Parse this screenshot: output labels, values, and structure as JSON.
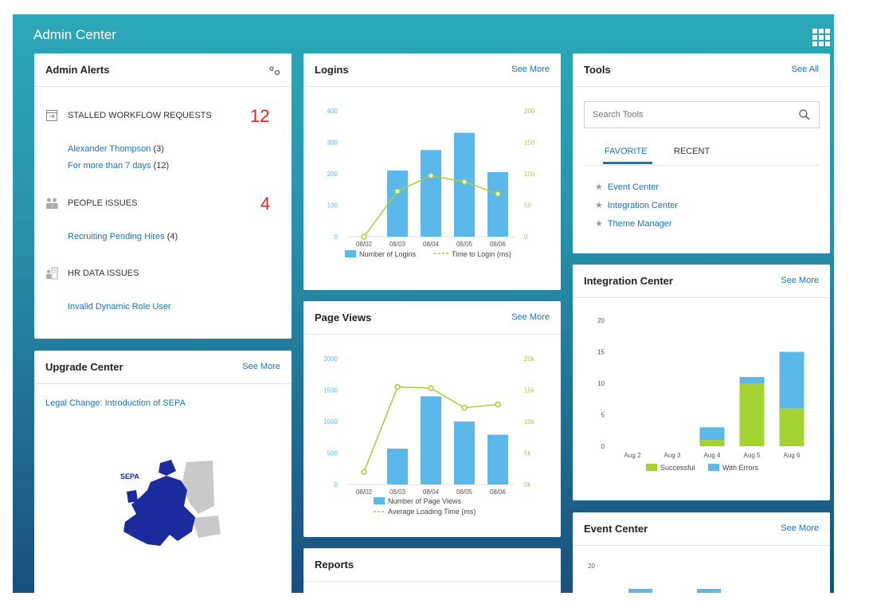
{
  "header": {
    "title": "Admin Center",
    "apps_icon": "grid-icon"
  },
  "admin_alerts": {
    "title": "Admin Alerts",
    "sections": [
      {
        "label": "STALLED WORKFLOW REQUESTS",
        "count": "12",
        "icon": "workflow-icon",
        "links": [
          {
            "text": "Alexander Thompson",
            "num": "(3)"
          },
          {
            "text": "For more than 7 days",
            "num": "(12)"
          }
        ]
      },
      {
        "label": "PEOPLE ISSUES",
        "count": "4",
        "icon": "people-icon",
        "links": [
          {
            "text": "Recruiting Pending Hires",
            "num": "(4)"
          }
        ]
      },
      {
        "label": "HR DATA ISSUES",
        "count": "",
        "icon": "hr-data-icon",
        "links": [
          {
            "text": "Invalid Dynamic Role User",
            "num": ""
          }
        ]
      }
    ]
  },
  "upgrade_center": {
    "title": "Upgrade Center",
    "see_more": "See More",
    "link": "Legal Change: Introduction of SEPA",
    "image_label": "SEPA"
  },
  "logins": {
    "title": "Logins",
    "see_more": "See More",
    "chart_data": {
      "type": "bar",
      "categories": [
        "08/02",
        "08/03",
        "08/04",
        "08/05",
        "08/06"
      ],
      "series": [
        {
          "name": "Number of Logins",
          "type": "bar",
          "axis": "left",
          "values": [
            0,
            210,
            275,
            330,
            205
          ]
        },
        {
          "name": "Time to Login (ms)",
          "type": "line",
          "axis": "right",
          "values": [
            0,
            72,
            97,
            87,
            68
          ]
        }
      ],
      "ylim": [
        0,
        400
      ],
      "y2lim": [
        0,
        200
      ],
      "yticks": [
        "0",
        "100",
        "200",
        "300",
        "400"
      ],
      "y2ticks": [
        "0",
        "50",
        "100",
        "150",
        "200"
      ],
      "legend": "bottom",
      "colors": {
        "bar": "#5bb8ea",
        "line": "#a4d233"
      }
    }
  },
  "page_views": {
    "title": "Page Views",
    "see_more": "See More",
    "chart_data": {
      "type": "bar",
      "categories": [
        "08/02",
        "08/03",
        "08/04",
        "08/05",
        "08/06"
      ],
      "series": [
        {
          "name": "Number of Page Views",
          "type": "bar",
          "axis": "left",
          "values": [
            0,
            570,
            1400,
            1000,
            790
          ]
        },
        {
          "name": "Average Loading Time (ms)",
          "type": "line",
          "axis": "right",
          "values": [
            2000,
            15500,
            15300,
            12200,
            12700
          ]
        }
      ],
      "ylim": [
        0,
        2000
      ],
      "y2lim": [
        0,
        20000
      ],
      "yticks": [
        "0",
        "500",
        "1000",
        "1500",
        "2000"
      ],
      "y2ticks": [
        "0k",
        "5k",
        "10k",
        "15k",
        "20k"
      ],
      "legend": "bottom",
      "colors": {
        "bar": "#5bb8ea",
        "line": "#a4d233"
      }
    }
  },
  "reports": {
    "title": "Reports"
  },
  "tools": {
    "title": "Tools",
    "see_all": "See All",
    "search_placeholder": "Search Tools",
    "tabs": [
      "FAVORITE",
      "RECENT"
    ],
    "favorites": [
      "Event Center",
      "Integration Center",
      "Theme Manager"
    ]
  },
  "integration_center": {
    "title": "Integration Center",
    "see_more": "See More",
    "chart_data": {
      "type": "bar",
      "categories": [
        "Aug 2",
        "Aug 3",
        "Aug 4",
        "Aug 5",
        "Aug 6"
      ],
      "series": [
        {
          "name": "Successful",
          "values": [
            0,
            0,
            1,
            10,
            6
          ]
        },
        {
          "name": "With Errors",
          "values": [
            0,
            0,
            2,
            1,
            9
          ]
        }
      ],
      "stacked": true,
      "ylim": [
        0,
        20
      ],
      "yticks": [
        "0",
        "5",
        "10",
        "15",
        "20"
      ],
      "legend": "bottom",
      "colors": {
        "Successful": "#a4d233",
        "With Errors": "#5bb8ea"
      }
    }
  },
  "event_center": {
    "title": "Event Center",
    "see_more": "See More",
    "ytick_top": "20"
  }
}
